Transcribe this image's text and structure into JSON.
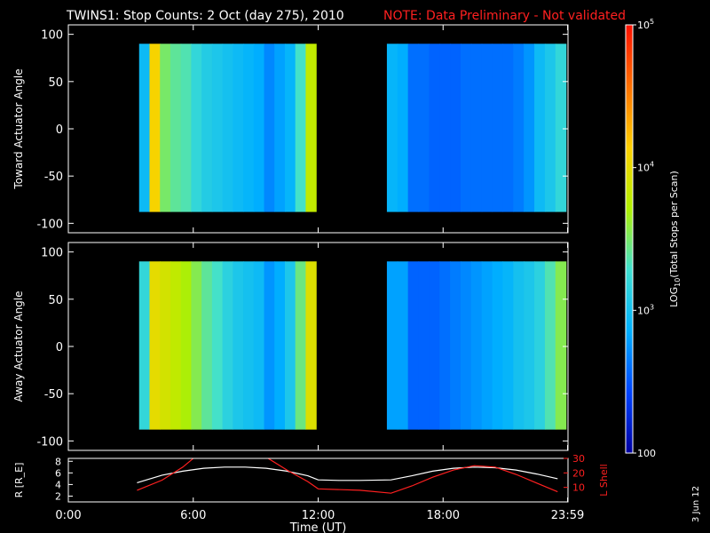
{
  "header": {
    "title": "TWINS1: Stop Counts:  2 Oct (day 275), 2010",
    "note": "NOTE: Data Preliminary - Not validated",
    "note_color": "#ff2020"
  },
  "side_date": "3 Jun 12",
  "chart_data": [
    {
      "type": "heatmap",
      "panel": "toward",
      "ylabel": "Toward Actuator Angle",
      "ylim": [
        -110,
        110
      ],
      "yticks": [
        -100,
        -50,
        0,
        50,
        100
      ],
      "ytick_labels": [
        "-100",
        "-50",
        "0",
        "50",
        "100"
      ],
      "xlim": [
        0,
        24
      ],
      "data_extent": {
        "angle": [
          -88,
          90
        ]
      },
      "segments": [
        {
          "start_hr": 3.4,
          "end_hr": 11.9,
          "profile": [
            2.95,
            4.1,
            3.5,
            3.4,
            3.35,
            3.2,
            3.1,
            3.05,
            3.0,
            2.95,
            2.9,
            2.85,
            2.7,
            2.8,
            2.9,
            3.3,
            3.8
          ]
        },
        {
          "start_hr": 15.3,
          "end_hr": 23.9,
          "profile": [
            2.9,
            2.85,
            2.6,
            2.6,
            2.55,
            2.55,
            2.55,
            2.6,
            2.6,
            2.6,
            2.6,
            2.6,
            2.65,
            2.75,
            2.95,
            3.05,
            3.2
          ]
        }
      ]
    },
    {
      "type": "heatmap",
      "panel": "away",
      "ylabel": "Away Actuator Angle",
      "ylim": [
        -110,
        110
      ],
      "yticks": [
        -100,
        -50,
        0,
        50,
        100
      ],
      "ytick_labels": [
        "-100",
        "-50",
        "0",
        "50",
        "100"
      ],
      "xlim": [
        0,
        24
      ],
      "data_extent": {
        "angle": [
          -88,
          90
        ]
      },
      "segments": [
        {
          "start_hr": 3.4,
          "end_hr": 11.9,
          "profile": [
            3.2,
            4.0,
            3.9,
            3.8,
            3.7,
            3.55,
            3.4,
            3.3,
            3.15,
            3.05,
            3.0,
            2.95,
            2.75,
            2.85,
            3.05,
            3.45,
            3.95
          ]
        },
        {
          "start_hr": 15.3,
          "end_hr": 23.9,
          "profile": [
            2.8,
            2.8,
            2.55,
            2.55,
            2.55,
            2.6,
            2.65,
            2.7,
            2.75,
            2.8,
            2.85,
            2.9,
            3.0,
            3.05,
            3.15,
            3.35,
            3.55
          ]
        }
      ]
    },
    {
      "type": "line",
      "panel": "orbit",
      "xlabel": "Time (UT)",
      "xlim": [
        0,
        24
      ],
      "xticks": [
        0,
        6,
        12,
        18,
        23.98
      ],
      "xtick_labels": [
        "0:00",
        "6:00",
        "12:00",
        "18:00",
        "23:59"
      ],
      "ylabel_left": "R [R_E]",
      "ylim_left": [
        1,
        8.5
      ],
      "yticks_left": [
        2,
        4,
        6,
        8
      ],
      "ylabel_right": "L Shell",
      "ylim_right": [
        0,
        30
      ],
      "yticks_right": [
        10,
        20,
        30
      ],
      "series": [
        {
          "axis": "left",
          "color": "#ffffff",
          "x": [
            3.3,
            4.5,
            5.5,
            6.5,
            7.5,
            8.5,
            9.5,
            10.5,
            11.5,
            12.0,
            13.0,
            14.0,
            15.5,
            16.5,
            17.5,
            18.5,
            19.5,
            20.5,
            21.5,
            22.5,
            23.5
          ],
          "y": [
            4.3,
            5.6,
            6.3,
            6.8,
            7.0,
            7.0,
            6.8,
            6.3,
            5.5,
            4.8,
            4.7,
            4.7,
            4.8,
            5.5,
            6.3,
            6.8,
            7.0,
            6.9,
            6.5,
            5.8,
            5.0
          ]
        },
        {
          "axis": "right",
          "color": "#ff2020",
          "x": [
            3.3,
            4.5,
            5.5,
            6.0,
            6.6
          ],
          "y": [
            8,
            15,
            24,
            30,
            40
          ]
        },
        {
          "axis": "right",
          "color": "#ff2020",
          "x": [
            9.0,
            9.6,
            10.5,
            11.5,
            12.0,
            14.0,
            15.5,
            16.5,
            17.5,
            18.5,
            19.5,
            20.5,
            21.5,
            22.5,
            23.5
          ],
          "y": [
            40,
            30,
            22,
            14,
            9,
            8,
            6,
            11,
            17,
            22,
            25,
            24,
            19,
            13,
            7
          ]
        }
      ]
    }
  ],
  "colorbar": {
    "label": "LOG10(Total Stops per Scan)",
    "label_main": "LOG",
    "label_sub": "10",
    "label_rest": "(Total Stops per Scan)",
    "log_range": [
      2,
      5
    ],
    "ticks": [
      {
        "log": 5,
        "base": "10",
        "exp": "5"
      },
      {
        "log": 4,
        "base": "10",
        "exp": "4"
      },
      {
        "log": 3,
        "base": "10",
        "exp": "3"
      },
      {
        "log": 2,
        "label": "100"
      }
    ]
  },
  "colors": {
    "background": "#000000",
    "axes": "#ffffff",
    "note": "#ff2020",
    "colormap": [
      "#0000a0",
      "#0044ff",
      "#00b0ff",
      "#40e0d0",
      "#b0f000",
      "#ffd000",
      "#ff7000",
      "#ff1000"
    ]
  }
}
